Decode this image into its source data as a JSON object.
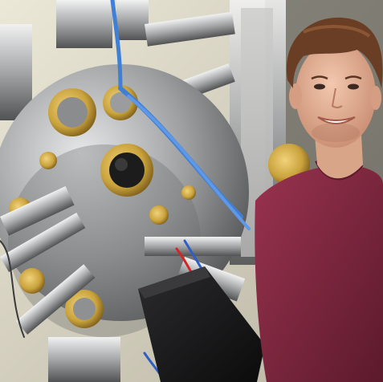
{
  "photo": {
    "alt": "",
    "colors": {
      "background_wall": "#d8d4c4",
      "steel": "#a9abad",
      "steel_dark": "#5e6062",
      "brass": "#c9a23c",
      "brass_dark": "#7e5e18",
      "cable_blue": "#3f7fd6",
      "sweater": "#8a2a43",
      "sweater_shadow": "#5c1a2c",
      "skin": "#e6b59b",
      "hair": "#6a3e24",
      "black_box": "#1c1c1e"
    }
  }
}
